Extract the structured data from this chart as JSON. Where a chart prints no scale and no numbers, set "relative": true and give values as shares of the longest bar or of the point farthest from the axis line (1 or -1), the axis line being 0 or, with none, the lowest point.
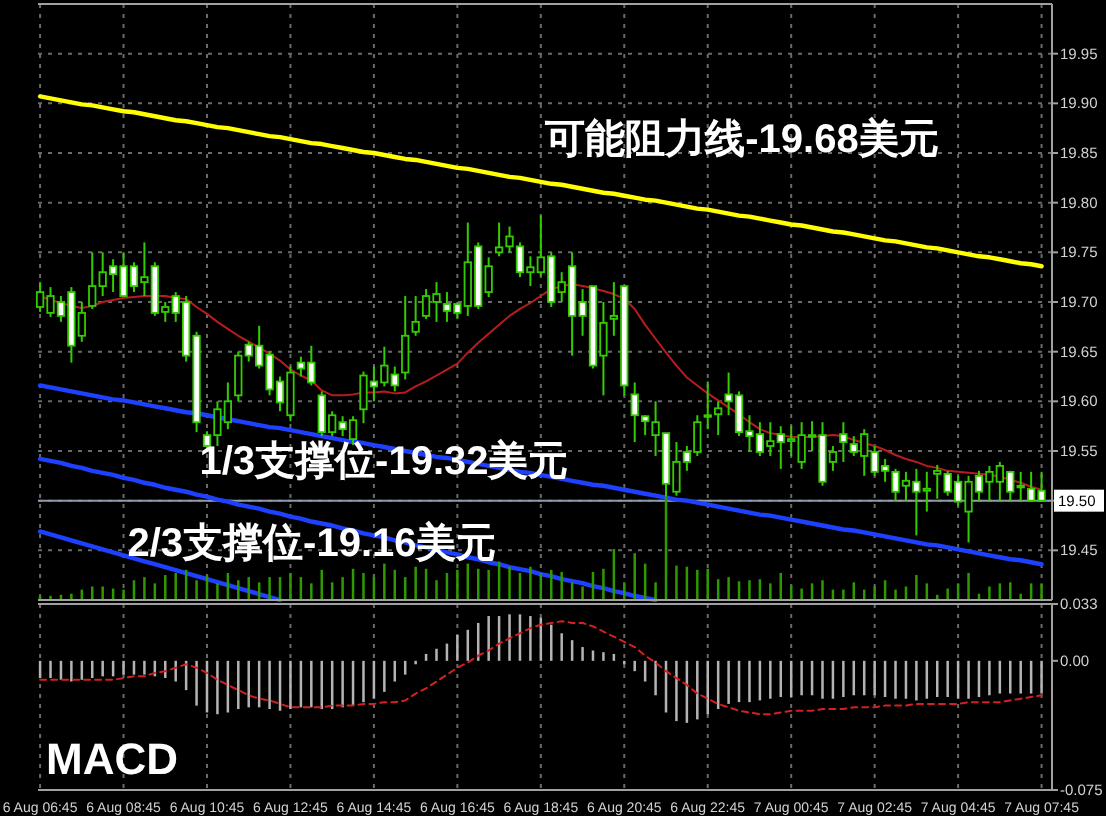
{
  "chart_data": [
    {
      "type": "candlestick",
      "categories": [
        null,
        null,
        null,
        null,
        null,
        null,
        null,
        null,
        null,
        null,
        null,
        null,
        null,
        null,
        null,
        null,
        null,
        null,
        null,
        null,
        null,
        null,
        null,
        null,
        null,
        null,
        null,
        null,
        null,
        null,
        null,
        null,
        null,
        null,
        null,
        null,
        null,
        null,
        null,
        null,
        null,
        null,
        null,
        null,
        null,
        null,
        null,
        null,
        null,
        null,
        null,
        null,
        null,
        null,
        null,
        null,
        null,
        null,
        null,
        null,
        null,
        null,
        null,
        null,
        null,
        null,
        null,
        null,
        null,
        null,
        null,
        null,
        null,
        null,
        null,
        null,
        null,
        null,
        null,
        null,
        null,
        null,
        null,
        null,
        null,
        null,
        null,
        null,
        null,
        null,
        null,
        null,
        null,
        null,
        null,
        null,
        null
      ],
      "ohlc": [
        [
          19.695,
          19.72,
          19.69,
          19.71
        ],
        [
          19.689,
          19.715,
          19.685,
          19.706
        ],
        [
          19.7,
          19.706,
          19.68,
          19.686
        ],
        [
          19.71,
          19.715,
          19.639,
          19.656
        ],
        [
          19.666,
          19.7,
          19.66,
          19.689
        ],
        [
          19.696,
          19.75,
          19.693,
          19.716
        ],
        [
          19.716,
          19.75,
          19.706,
          19.73
        ],
        [
          19.736,
          19.743,
          19.71,
          19.728
        ],
        [
          19.736,
          19.75,
          19.706,
          19.706
        ],
        [
          19.736,
          19.74,
          19.71,
          19.716
        ],
        [
          19.72,
          19.76,
          19.706,
          19.725
        ],
        [
          19.736,
          19.74,
          19.686,
          19.689
        ],
        [
          19.69,
          19.7,
          19.68,
          19.695
        ],
        [
          19.706,
          19.71,
          19.68,
          19.689
        ],
        [
          19.7,
          19.706,
          19.64,
          19.646
        ],
        [
          19.666,
          19.67,
          19.569,
          19.579
        ],
        [
          19.566,
          19.57,
          19.55,
          19.555
        ],
        [
          19.566,
          19.6,
          19.555,
          19.592
        ],
        [
          19.579,
          19.619,
          19.572,
          19.6
        ],
        [
          19.606,
          19.65,
          19.6,
          19.646
        ],
        [
          19.657,
          19.66,
          19.64,
          19.646
        ],
        [
          19.656,
          19.676,
          19.633,
          19.636
        ],
        [
          19.647,
          19.65,
          19.606,
          19.612
        ],
        [
          19.62,
          19.625,
          19.59,
          19.599
        ],
        [
          19.586,
          19.635,
          19.58,
          19.629
        ],
        [
          19.639,
          19.645,
          19.625,
          19.633
        ],
        [
          19.639,
          19.656,
          19.616,
          19.619
        ],
        [
          19.606,
          19.61,
          19.565,
          19.569
        ],
        [
          19.569,
          19.59,
          19.565,
          19.586
        ],
        [
          19.579,
          19.585,
          19.565,
          19.572
        ],
        [
          19.562,
          19.585,
          19.556,
          19.581
        ],
        [
          19.592,
          19.63,
          19.578,
          19.626
        ],
        [
          19.62,
          19.635,
          19.6,
          19.615
        ],
        [
          19.619,
          19.655,
          19.615,
          19.636
        ],
        [
          19.627,
          19.635,
          19.61,
          19.616
        ],
        [
          19.629,
          19.706,
          19.622,
          19.666
        ],
        [
          19.67,
          19.706,
          19.666,
          19.68
        ],
        [
          19.686,
          19.713,
          19.683,
          19.706
        ],
        [
          19.7,
          19.72,
          19.68,
          19.708
        ],
        [
          19.698,
          19.71,
          19.68,
          19.691
        ],
        [
          19.698,
          19.7,
          19.683,
          19.689
        ],
        [
          19.696,
          19.78,
          19.686,
          19.74
        ],
        [
          19.756,
          19.76,
          19.693,
          19.696
        ],
        [
          19.71,
          19.745,
          19.705,
          19.736
        ],
        [
          19.75,
          19.78,
          19.746,
          19.755
        ],
        [
          19.756,
          19.776,
          19.75,
          19.766
        ],
        [
          19.756,
          19.76,
          19.725,
          19.73
        ],
        [
          19.73,
          19.746,
          19.716,
          19.735
        ],
        [
          19.73,
          19.787,
          19.726,
          19.745
        ],
        [
          19.746,
          19.75,
          19.695,
          19.7
        ],
        [
          19.71,
          19.73,
          19.7,
          19.72
        ],
        [
          19.736,
          19.75,
          19.646,
          19.686
        ],
        [
          19.7,
          19.713,
          19.666,
          19.686
        ],
        [
          19.716,
          19.716,
          19.633,
          19.636
        ],
        [
          19.646,
          19.7,
          19.606,
          19.679
        ],
        [
          19.683,
          19.72,
          19.666,
          19.686
        ],
        [
          19.716,
          19.716,
          19.606,
          19.616
        ],
        [
          19.607,
          19.619,
          19.559,
          19.586
        ],
        [
          19.585,
          19.586,
          19.566,
          19.58
        ],
        [
          19.566,
          19.6,
          19.545,
          19.579
        ],
        [
          19.568,
          19.568,
          19.47,
          19.517
        ],
        [
          19.509,
          19.559,
          19.505,
          19.539
        ],
        [
          19.549,
          19.555,
          19.53,
          19.539
        ],
        [
          19.549,
          19.586,
          19.545,
          19.579
        ],
        [
          19.585,
          19.62,
          19.572,
          19.586
        ],
        [
          19.587,
          19.6,
          19.566,
          19.593
        ],
        [
          19.607,
          19.629,
          19.586,
          19.6
        ],
        [
          19.606,
          19.61,
          19.565,
          19.569
        ],
        [
          19.57,
          19.586,
          19.549,
          19.565
        ],
        [
          19.567,
          19.579,
          19.545,
          19.549
        ],
        [
          19.555,
          19.579,
          19.545,
          19.56
        ],
        [
          19.567,
          19.575,
          19.532,
          19.559
        ],
        [
          19.56,
          19.575,
          19.545,
          19.562
        ],
        [
          19.539,
          19.579,
          19.532,
          19.566
        ],
        [
          19.566,
          19.58,
          19.55,
          19.565
        ],
        [
          19.566,
          19.579,
          19.515,
          19.519
        ],
        [
          19.539,
          19.555,
          19.53,
          19.549
        ],
        [
          19.567,
          19.579,
          19.539,
          19.559
        ],
        [
          19.557,
          19.565,
          19.545,
          19.549
        ],
        [
          19.545,
          19.572,
          19.525,
          19.567
        ],
        [
          19.549,
          19.555,
          19.525,
          19.529
        ],
        [
          19.535,
          19.542,
          19.519,
          19.53
        ],
        [
          19.529,
          19.532,
          19.5,
          19.509
        ],
        [
          19.515,
          19.529,
          19.5,
          19.52
        ],
        [
          19.519,
          19.532,
          19.465,
          19.509
        ],
        [
          19.51,
          19.529,
          19.489,
          19.512
        ],
        [
          19.527,
          19.536,
          19.502,
          19.53
        ],
        [
          19.527,
          19.53,
          19.505,
          19.509
        ],
        [
          19.519,
          19.525,
          19.495,
          19.499
        ],
        [
          19.489,
          19.525,
          19.458,
          19.519
        ],
        [
          19.525,
          19.53,
          19.5,
          19.509
        ],
        [
          19.519,
          19.535,
          19.5,
          19.529
        ],
        [
          19.519,
          19.539,
          19.499,
          19.535
        ],
        [
          19.529,
          19.53,
          19.5,
          19.509
        ],
        [
          19.515,
          19.529,
          19.499,
          19.515
        ],
        [
          19.512,
          19.529,
          19.499,
          19.5
        ],
        [
          19.51,
          19.529,
          19.499,
          19.5
        ]
      ],
      "color": "#33cc00",
      "colors": [
        "#000000",
        "#000000",
        "#ffffff",
        "#ffffff",
        "#000000",
        "#000000",
        "#000000",
        "#ffffff",
        "#ffffff",
        "#ffffff",
        "#000000",
        "#ffffff",
        "#000000",
        "#ffffff",
        "#ffffff",
        "#ffffff",
        "#ffffff",
        "#000000",
        "#000000",
        "#000000",
        "#ffffff",
        "#ffffff",
        "#ffffff",
        "#ffffff",
        "#000000",
        "#ffffff",
        "#ffffff",
        "#ffffff",
        "#000000",
        "#ffffff",
        "#000000",
        "#000000",
        "#ffffff",
        "#000000",
        "#ffffff",
        "#000000",
        "#000000",
        "#000000",
        "#000000",
        "#ffffff",
        "#ffffff",
        "#000000",
        "#ffffff",
        "#000000",
        "#000000",
        "#000000",
        "#ffffff",
        "#000000",
        "#000000",
        "#ffffff",
        "#000000",
        "#ffffff",
        "#ffffff",
        "#ffffff",
        "#000000",
        "#000000",
        "#ffffff",
        "#ffffff",
        "#ffffff",
        "#000000",
        "#ffffff",
        "#000000",
        "#ffffff",
        "#000000",
        "#000000",
        "#000000",
        "#ffffff",
        "#ffffff",
        "#ffffff",
        "#ffffff",
        "#000000",
        "#ffffff",
        "#000000",
        "#000000",
        "#ffffff",
        "#ffffff",
        "#000000",
        "#ffffff",
        "#ffffff",
        "#000000",
        "#ffffff",
        "#ffffff",
        "#ffffff",
        "#000000",
        "#ffffff",
        "#000000",
        "#000000",
        "#ffffff",
        "#ffffff",
        "#000000",
        "#ffffff",
        "#000000",
        "#000000",
        "#ffffff",
        "#000000",
        "#ffffff",
        "#ffffff"
      ],
      "series": [
        {
          "type": "line",
          "color": "#b81c1c",
          "values": [
            19.706,
            19.702,
            19.699,
            19.696,
            19.694,
            19.696,
            19.7,
            19.702,
            19.704,
            19.705,
            19.706,
            19.706,
            19.706,
            19.704,
            19.703,
            19.695,
            19.688,
            19.68,
            19.673,
            19.666,
            19.66,
            19.654,
            19.648,
            19.641,
            19.632,
            19.626,
            19.621,
            19.611,
            19.606,
            19.606,
            19.607,
            19.609,
            19.609,
            19.61,
            19.608,
            19.609,
            19.615,
            19.62,
            19.626,
            19.632,
            19.638,
            19.649,
            19.659,
            19.668,
            19.677,
            19.686,
            19.693,
            19.699,
            19.706,
            19.713,
            19.716,
            19.718,
            19.716,
            19.714,
            19.711,
            19.708,
            19.703,
            19.693,
            19.677,
            19.663,
            19.649,
            19.636,
            19.624,
            19.616,
            19.608,
            19.601,
            19.594,
            19.587,
            19.579,
            19.572,
            19.568,
            19.566,
            19.564,
            19.564,
            19.564,
            19.565,
            19.566,
            19.565,
            19.561,
            19.558,
            19.555,
            19.551,
            19.546,
            19.542,
            19.539,
            19.535,
            19.533,
            19.53,
            19.529,
            19.528,
            19.527,
            19.526,
            19.524,
            19.521,
            19.518,
            19.514,
            19.511
          ]
        },
        {
          "type": "line",
          "color": "#ffff00",
          "values": [
            19.907,
            19.905,
            19.903,
            19.901,
            19.899,
            19.898,
            19.896,
            19.894,
            19.892,
            19.891,
            19.889,
            19.887,
            19.885,
            19.883,
            19.882,
            19.88,
            19.878,
            19.876,
            19.875,
            19.873,
            19.871,
            19.869,
            19.867,
            19.866,
            19.864,
            19.862,
            19.86,
            19.859,
            19.857,
            19.855,
            19.853,
            19.851,
            19.85,
            19.848,
            19.846,
            19.844,
            19.843,
            19.841,
            19.839,
            19.837,
            19.835,
            19.834,
            19.832,
            19.83,
            19.828,
            19.826,
            19.825,
            19.823,
            19.821,
            19.819,
            19.818,
            19.816,
            19.814,
            19.812,
            19.81,
            19.809,
            19.807,
            19.805,
            19.803,
            19.802,
            19.8,
            19.798,
            19.796,
            19.794,
            19.793,
            19.791,
            19.789,
            19.787,
            19.786,
            19.784,
            19.782,
            19.78,
            19.778,
            19.777,
            19.775,
            19.773,
            19.771,
            19.77,
            19.768,
            19.766,
            19.764,
            19.762,
            19.761,
            19.759,
            19.757,
            19.755,
            19.754,
            19.752,
            19.75,
            19.748,
            19.746,
            19.745,
            19.743,
            19.741,
            19.739,
            19.738,
            19.736
          ]
        },
        {
          "type": "line",
          "color": "#1e40ff",
          "values": [
            19.616,
            19.614,
            19.612,
            19.61,
            19.608,
            19.606,
            19.604,
            19.602,
            19.601,
            19.599,
            19.597,
            19.595,
            19.593,
            19.591,
            19.589,
            19.588,
            19.586,
            19.584,
            19.582,
            19.58,
            19.578,
            19.576,
            19.574,
            19.573,
            19.571,
            19.569,
            19.567,
            19.565,
            19.563,
            19.561,
            19.559,
            19.558,
            19.556,
            19.554,
            19.552,
            19.55,
            19.548,
            19.546,
            19.544,
            19.543,
            19.541,
            19.539,
            19.537,
            19.535,
            19.533,
            19.531,
            19.529,
            19.528,
            19.526,
            19.524,
            19.522,
            19.52,
            19.518,
            19.516,
            19.515,
            19.513,
            19.511,
            19.509,
            19.507,
            19.505,
            19.503,
            19.501,
            19.5,
            19.498,
            19.496,
            19.494,
            19.492,
            19.49,
            19.488,
            19.486,
            19.485,
            19.483,
            19.481,
            19.479,
            19.477,
            19.475,
            19.473,
            19.471,
            19.47,
            19.468,
            19.466,
            19.464,
            19.462,
            19.46,
            19.458,
            19.456,
            19.455,
            19.453,
            19.451,
            19.449,
            19.447,
            19.445,
            19.443,
            19.441,
            19.44,
            19.438,
            19.436
          ]
        },
        {
          "type": "line",
          "color": "#1e40ff",
          "values": [
            19.542,
            19.54,
            19.538,
            19.535,
            19.533,
            19.53,
            19.528,
            19.526,
            19.523,
            19.521,
            19.518,
            19.516,
            19.513,
            19.511,
            19.509,
            19.506,
            19.504,
            19.501,
            19.499,
            19.496,
            19.494,
            19.492,
            19.489,
            19.487,
            19.484,
            19.482,
            19.479,
            19.477,
            19.475,
            19.472,
            19.47,
            19.467,
            19.465,
            19.463,
            19.46,
            19.458,
            19.455,
            19.453,
            19.45,
            19.448,
            19.446,
            19.443,
            19.441,
            19.438,
            19.436,
            19.433,
            19.431,
            19.429,
            19.426,
            19.424,
            19.421,
            19.419,
            19.417,
            19.414,
            19.412,
            19.409,
            19.407,
            19.404,
            19.402,
            19.4,
            null,
            null,
            null,
            null,
            null,
            null,
            null,
            null,
            null,
            null,
            null,
            null,
            null,
            null,
            null,
            null,
            null,
            null,
            null,
            null,
            null,
            null,
            null,
            null,
            null,
            null,
            null,
            null,
            null,
            null,
            null,
            null,
            null,
            null,
            null,
            null,
            null
          ]
        },
        {
          "type": "line",
          "color": "#1e40ff",
          "values": [
            19.469,
            19.466,
            19.463,
            19.46,
            19.457,
            19.454,
            19.451,
            19.448,
            19.445,
            19.442,
            19.439,
            19.436,
            19.433,
            19.43,
            19.427,
            19.424,
            19.421,
            19.418,
            19.415,
            19.412,
            19.409,
            19.406,
            19.403,
            19.4,
            null,
            null,
            null,
            null,
            null,
            null,
            null,
            null,
            null,
            null,
            null,
            null,
            null,
            null,
            null,
            null,
            null,
            null,
            null,
            null,
            null,
            null,
            null,
            null,
            null,
            null,
            null,
            null,
            null,
            null,
            null,
            null,
            null,
            null,
            null,
            null,
            null,
            null,
            null,
            null,
            null,
            null,
            null,
            null,
            null,
            null,
            null,
            null,
            null,
            null,
            null,
            null,
            null,
            null,
            null,
            null,
            null,
            null,
            null,
            null,
            null,
            null,
            null,
            null,
            null,
            null,
            null,
            null,
            null,
            null,
            null,
            null,
            null
          ]
        }
      ],
      "ylim": [
        19.4,
        20.0
      ],
      "yticks": [
        {
          "value": 19.45,
          "label": "19.45"
        },
        {
          "value": 19.5,
          "label": null
        },
        {
          "value": 19.55,
          "label": "19.55"
        },
        {
          "value": 19.6,
          "label": "19.60"
        },
        {
          "value": 19.65,
          "label": "19.65"
        },
        {
          "value": 19.7,
          "label": "19.70"
        },
        {
          "value": 19.75,
          "label": "19.75"
        },
        {
          "value": 19.8,
          "label": "19.80"
        },
        {
          "value": 19.85,
          "label": "19.85"
        },
        {
          "value": 19.9,
          "label": "19.90"
        },
        {
          "value": 19.95,
          "label": "19.95"
        }
      ],
      "ref_lines": [
        {
          "axis": "y",
          "value": 19.5,
          "label": "19.50",
          "color": "#8f9aab"
        }
      ],
      "grid": true,
      "annotations": [
        "可能阻力线-19.68美元",
        "1/3支撑位-19.32美元",
        "2/3支撑位-19.16美元"
      ]
    },
    {
      "type": "bar",
      "relative": true,
      "categories": [
        null,
        null,
        null,
        null,
        null,
        null,
        null,
        null,
        null,
        null,
        null,
        null,
        null,
        null,
        null,
        null,
        null,
        null,
        null,
        null,
        null,
        null,
        null,
        null,
        null,
        null,
        null,
        null,
        null,
        null,
        null,
        null,
        null,
        null,
        null,
        null,
        null,
        null,
        null,
        null,
        null,
        null,
        null,
        null,
        null,
        null,
        null,
        null,
        null,
        null,
        null,
        null,
        null,
        null,
        null,
        null,
        null,
        null,
        null,
        null,
        null,
        null,
        null,
        null,
        null,
        null,
        null,
        null,
        null,
        null,
        null,
        null,
        null,
        null,
        null,
        null,
        null,
        null,
        null,
        null,
        null,
        null,
        null,
        null,
        null,
        null,
        null,
        null,
        null,
        null,
        null,
        null,
        null,
        null,
        null,
        null,
        null
      ],
      "values": [
        0.04,
        0.04,
        0.05,
        0.06,
        0.1,
        0.13,
        0.13,
        0.11,
        0.1,
        0.19,
        0.22,
        0.16,
        0.24,
        0.26,
        0.29,
        0.19,
        0.24,
        0.16,
        0.26,
        0.19,
        0.22,
        0.17,
        0.22,
        0.22,
        0.26,
        0.22,
        0.16,
        0.29,
        0.17,
        0.22,
        0.3,
        0.26,
        0.22,
        0.35,
        0.29,
        0.22,
        0.32,
        0.3,
        0.19,
        0.26,
        0.29,
        0.35,
        0.3,
        0.29,
        0.37,
        0.32,
        0.26,
        0.32,
        0.26,
        0.29,
        0.27,
        0.17,
        0.13,
        0.27,
        0.3,
        0.49,
        0.17,
        0.45,
        0.35,
        0.17,
        1,
        0.33,
        0.32,
        0.29,
        0.3,
        0.2,
        0.22,
        0.18,
        0.19,
        0.2,
        0.16,
        0.26,
        0.14,
        0.11,
        0.16,
        0.19,
        0.1,
        0.1,
        0.17,
        0.1,
        0.13,
        0.19,
        0.1,
        0.13,
        0.24,
        0.16,
        0.05,
        0.11,
        0.16,
        0.26,
        0.06,
        0.13,
        0.16,
        0.17,
        0.06,
        0.16,
        0.16
      ],
      "color": "#2e9900"
    },
    {
      "type": "bar",
      "title": "MACD",
      "categories": [
        "6 Aug 06:45",
        null,
        null,
        null,
        null,
        null,
        null,
        null,
        "6 Aug 08:45",
        null,
        null,
        null,
        null,
        null,
        null,
        null,
        "6 Aug 10:45",
        null,
        null,
        null,
        null,
        null,
        null,
        null,
        "6 Aug 12:45",
        null,
        null,
        null,
        null,
        null,
        null,
        null,
        "6 Aug 14:45",
        null,
        null,
        null,
        null,
        null,
        null,
        null,
        "6 Aug 16:45",
        null,
        null,
        null,
        null,
        null,
        null,
        null,
        "6 Aug 18:45",
        null,
        null,
        null,
        null,
        null,
        null,
        null,
        "6 Aug 20:45",
        null,
        null,
        null,
        null,
        null,
        null,
        null,
        "6 Aug 22:45",
        null,
        null,
        null,
        null,
        null,
        null,
        null,
        "7 Aug 00:45",
        null,
        null,
        null,
        null,
        null,
        null,
        null,
        "7 Aug 02:45",
        null,
        null,
        null,
        null,
        null,
        null,
        null,
        "7 Aug 04:45",
        null,
        null,
        null,
        null,
        null,
        null,
        null,
        "7 Aug 07:45"
      ],
      "series": [
        {
          "type": "bar",
          "color": "#b4b4b4",
          "values": [
            -0.01,
            -0.01,
            -0.011,
            -0.012,
            -0.011,
            -0.01,
            -0.009,
            -0.009,
            -0.008,
            -0.008,
            -0.008,
            -0.009,
            -0.01,
            -0.012,
            -0.017,
            -0.026,
            -0.03,
            -0.031,
            -0.03,
            -0.028,
            -0.027,
            -0.027,
            -0.028,
            -0.029,
            -0.028,
            -0.027,
            -0.027,
            -0.028,
            -0.028,
            -0.027,
            -0.026,
            -0.024,
            -0.022,
            -0.018,
            -0.012,
            -0.008,
            -0.002,
            0.004,
            0.007,
            0.01,
            0.015,
            0.018,
            0.022,
            0.026,
            0.026,
            0.027,
            0.027,
            0.026,
            0.025,
            0.021,
            0.016,
            0.012,
            0.008,
            0.006,
            0.005,
            0.004,
            -0.002,
            -0.006,
            -0.012,
            -0.02,
            -0.03,
            -0.035,
            -0.036,
            -0.034,
            -0.031,
            -0.028,
            -0.025,
            -0.024,
            -0.024,
            -0.023,
            -0.022,
            -0.021,
            -0.021,
            -0.02,
            -0.02,
            -0.022,
            -0.022,
            -0.021,
            -0.02,
            -0.02,
            -0.02,
            -0.021,
            -0.022,
            -0.022,
            -0.023,
            -0.022,
            -0.021,
            -0.021,
            -0.022,
            -0.022,
            -0.021,
            -0.02,
            -0.019,
            -0.019,
            -0.019,
            -0.019,
            -0.019
          ]
        },
        {
          "type": "line",
          "color": "#d42020",
          "line_style": "dashed",
          "values": [
            -0.011,
            -0.011,
            -0.011,
            -0.011,
            -0.011,
            -0.011,
            -0.011,
            -0.011,
            -0.01,
            -0.009,
            -0.009,
            -0.007,
            -0.006,
            -0.004,
            -0.002,
            -0.004,
            -0.007,
            -0.011,
            -0.014,
            -0.017,
            -0.02,
            -0.022,
            -0.023,
            -0.025,
            -0.027,
            -0.027,
            -0.027,
            -0.027,
            -0.026,
            -0.026,
            -0.026,
            -0.025,
            -0.025,
            -0.024,
            -0.024,
            -0.023,
            -0.019,
            -0.016,
            -0.012,
            -0.008,
            -0.004,
            -0.001,
            0.003,
            0.006,
            0.01,
            0.013,
            0.016,
            0.019,
            0.021,
            0.022,
            0.023,
            0.022,
            0.022,
            0.02,
            0.017,
            0.014,
            0.011,
            0.008,
            0.003,
            -0.001,
            -0.006,
            -0.01,
            -0.014,
            -0.019,
            -0.022,
            -0.025,
            -0.027,
            -0.029,
            -0.03,
            -0.031,
            -0.031,
            -0.03,
            -0.029,
            -0.029,
            -0.029,
            -0.028,
            -0.028,
            -0.028,
            -0.027,
            -0.027,
            -0.027,
            -0.026,
            -0.026,
            -0.026,
            -0.025,
            -0.025,
            -0.025,
            -0.025,
            -0.025,
            -0.024,
            -0.024,
            -0.024,
            -0.024,
            -0.023,
            -0.022,
            -0.021,
            -0.02
          ]
        }
      ],
      "ylim": [
        -0.075,
        0.033
      ],
      "yticks": [
        {
          "value": 0.033,
          "label": "0.033"
        },
        {
          "value": 0,
          "label": "0.00"
        },
        {
          "value": -0.075,
          "label": "-0.075"
        }
      ],
      "grid": "x"
    }
  ]
}
